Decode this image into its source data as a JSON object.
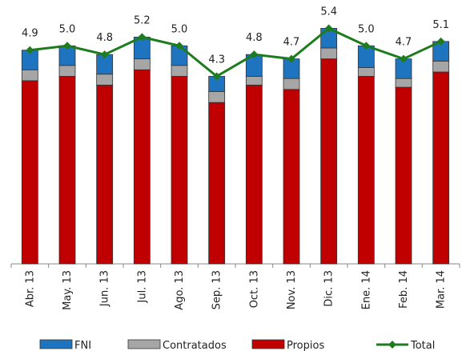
{
  "chart_data": {
    "type": "stacked-bar-line",
    "categories": [
      "Abr. 13",
      "May. 13",
      "Jun. 13",
      "Jul. 13",
      "Ago. 13",
      "Sep. 13",
      "Oct. 13",
      "Nov. 13",
      "Dic. 13",
      "Ene. 14",
      "Feb. 14",
      "Mar. 14"
    ],
    "series": [
      {
        "name": "FNI",
        "color": "#1f74c0",
        "kind": "bar",
        "values": [
          0.45,
          0.45,
          0.45,
          0.5,
          0.45,
          0.35,
          0.5,
          0.45,
          0.45,
          0.5,
          0.45,
          0.45
        ]
      },
      {
        "name": "Contratados",
        "color": "#a6a6a6",
        "kind": "bar",
        "values": [
          0.25,
          0.25,
          0.25,
          0.25,
          0.25,
          0.25,
          0.2,
          0.25,
          0.25,
          0.2,
          0.2,
          0.25
        ]
      },
      {
        "name": "Propios",
        "color": "#c00000",
        "kind": "bar",
        "values": [
          4.2,
          4.3,
          4.1,
          4.45,
          4.3,
          3.7,
          4.1,
          4.0,
          4.7,
          4.3,
          4.05,
          4.4
        ]
      },
      {
        "name": "Total",
        "color": "#1e7b1e",
        "kind": "line",
        "values": [
          4.9,
          5.0,
          4.8,
          5.2,
          5.0,
          4.3,
          4.8,
          4.7,
          5.4,
          5.0,
          4.7,
          5.1
        ],
        "value_labels": [
          "4.9",
          "5.0",
          "4.8",
          "5.2",
          "5.0",
          "4.3",
          "4.8",
          "4.7",
          "5.4",
          "5.0",
          "4.7",
          "5.1"
        ]
      }
    ],
    "ylim": [
      0,
      5.5
    ],
    "legend": "bottom"
  }
}
